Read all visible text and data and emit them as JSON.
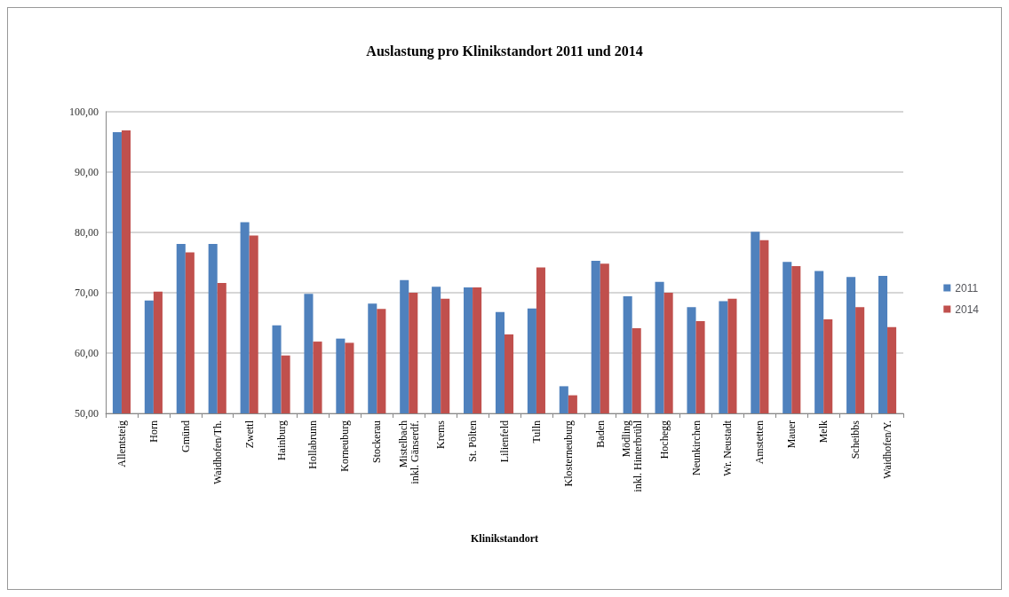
{
  "chart_data": {
    "type": "bar",
    "title": "Auslastung pro Klinikstandort 2011 und 2014",
    "xlabel": "Klinikstandort",
    "categories": [
      "Allentsteig",
      "Horn",
      "Gmünd",
      "Waidhofen/Th.",
      "Zwettl",
      "Hainburg",
      "Hollabrunn",
      "Korneuburg",
      "Stockerau",
      "Mistelbach\ninkl. Gänserdf.",
      "Krems",
      "St. Pölten",
      "Lilienfeld",
      "Tulln",
      "Klosterneuburg",
      "Baden",
      "Mödling\ninkl. Hinterbrühl",
      "Hochegg",
      "Neunkirchen",
      "Wr. Neustadt",
      "Amstetten",
      "Mauer",
      "Melk",
      "Scheibbs",
      "Waidhofen/Y."
    ],
    "series": [
      {
        "name": "2011",
        "color": "#4f81bd",
        "values": [
          96.6,
          68.7,
          78.1,
          78.1,
          81.7,
          64.6,
          69.8,
          62.4,
          68.2,
          72.1,
          71.0,
          70.9,
          66.8,
          67.4,
          54.5,
          75.3,
          69.4,
          71.8,
          67.6,
          68.6,
          80.1,
          75.1,
          73.6,
          72.6,
          72.8
        ]
      },
      {
        "name": "2014",
        "color": "#c0504d",
        "values": [
          96.9,
          70.2,
          76.7,
          71.6,
          79.5,
          59.6,
          61.9,
          61.7,
          67.3,
          70.0,
          69.0,
          70.9,
          63.1,
          74.2,
          53.0,
          74.8,
          64.1,
          70.0,
          65.3,
          69.0,
          78.7,
          74.4,
          65.6,
          67.6,
          64.3
        ]
      }
    ],
    "ylim": [
      50,
      100
    ],
    "yticks": [
      {
        "value": 50,
        "label": "50,00"
      },
      {
        "value": 60,
        "label": "60,00"
      },
      {
        "value": 70,
        "label": "70,00"
      },
      {
        "value": 80,
        "label": "80,00"
      },
      {
        "value": 90,
        "label": "90,00"
      },
      {
        "value": 100,
        "label": "100,00"
      }
    ],
    "grid": "y",
    "legend": "right"
  }
}
